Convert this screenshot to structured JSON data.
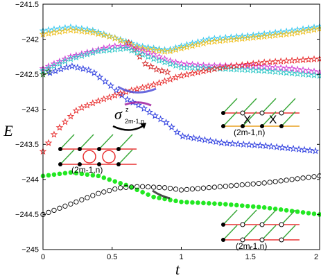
{
  "chart_data": {
    "type": "scatter",
    "xlabel": "t",
    "ylabel": "E",
    "xlim": [
      0,
      2
    ],
    "ylim": [
      -245,
      -241.5
    ],
    "grid": false,
    "x_ticks": [
      0,
      0.5,
      1,
      1.5,
      2
    ],
    "x_tick_labels": [
      "0",
      "0.5",
      "1",
      "1.5",
      "2"
    ],
    "y_ticks": [
      -241.5,
      -242,
      -242.5,
      -243,
      -243.5,
      -244,
      -244.5,
      -245
    ],
    "y_tick_labels": [
      "−241.5",
      "−242",
      "−242.5",
      "−243",
      "−243.5",
      "−244",
      "−244.5",
      "−245"
    ],
    "series": [
      {
        "marker": "star",
        "color": "#39c8f0",
        "points": [
          [
            0,
            -241.88
          ],
          [
            0.2,
            -241.83
          ],
          [
            0.35,
            -241.87
          ],
          [
            0.55,
            -242.0
          ],
          [
            0.7,
            -242.1
          ],
          [
            0.9,
            -242.16
          ],
          [
            1.0,
            -242.1
          ],
          [
            1.2,
            -242.0
          ],
          [
            1.5,
            -241.95
          ],
          [
            1.8,
            -241.88
          ],
          [
            2.0,
            -241.82
          ]
        ]
      },
      {
        "marker": "star",
        "color": "#f0c020",
        "points": [
          [
            0,
            -241.93
          ],
          [
            0.2,
            -241.87
          ],
          [
            0.35,
            -241.9
          ],
          [
            0.5,
            -241.97
          ],
          [
            0.6,
            -242.05
          ],
          [
            0.7,
            -242.13
          ],
          [
            0.9,
            -242.18
          ],
          [
            1.0,
            -242.13
          ],
          [
            1.2,
            -242.04
          ],
          [
            1.5,
            -241.98
          ],
          [
            1.8,
            -241.92
          ],
          [
            2.0,
            -241.85
          ]
        ]
      },
      {
        "marker": "star",
        "color": "#d42c2c",
        "points": [
          [
            0.62,
            -242.05
          ],
          [
            0.68,
            -242.2
          ],
          [
            0.74,
            -242.35
          ],
          [
            0.82,
            -242.43
          ],
          [
            0.9,
            -242.47
          ]
        ]
      },
      {
        "marker": "star",
        "color": "#d43cd4",
        "points": [
          [
            0,
            -242.42
          ],
          [
            0.2,
            -242.25
          ],
          [
            0.4,
            -242.15
          ],
          [
            0.5,
            -242.1
          ],
          [
            0.6,
            -242.1
          ],
          [
            0.7,
            -242.15
          ],
          [
            0.8,
            -242.22
          ],
          [
            0.9,
            -242.3
          ],
          [
            1.0,
            -242.35
          ],
          [
            1.2,
            -242.38
          ],
          [
            1.5,
            -242.38
          ],
          [
            1.8,
            -242.42
          ],
          [
            2.0,
            -242.47
          ]
        ]
      },
      {
        "marker": "star",
        "color": "#30c8c8",
        "points": [
          [
            0,
            -242.45
          ],
          [
            0.2,
            -242.28
          ],
          [
            0.4,
            -242.17
          ],
          [
            0.6,
            -242.13
          ],
          [
            0.8,
            -242.28
          ],
          [
            1.0,
            -242.4
          ],
          [
            1.3,
            -242.42
          ],
          [
            1.6,
            -242.45
          ],
          [
            2.0,
            -242.52
          ]
        ]
      },
      {
        "marker": "star",
        "color": "#2a7a2a",
        "points": [
          [
            0,
            -242.5
          ],
          [
            0.05,
            -242.45
          ]
        ]
      },
      {
        "marker": "star",
        "color": "#3040e0",
        "points": [
          [
            0.05,
            -242.48
          ],
          [
            0.2,
            -242.38
          ],
          [
            0.35,
            -242.45
          ],
          [
            0.5,
            -242.68
          ],
          [
            0.6,
            -242.85
          ],
          [
            0.7,
            -242.95
          ],
          [
            0.8,
            -243.08
          ],
          [
            0.9,
            -243.2
          ],
          [
            1.0,
            -243.38
          ],
          [
            1.3,
            -243.48
          ],
          [
            1.6,
            -243.52
          ],
          [
            2.0,
            -243.6
          ]
        ]
      },
      {
        "marker": "star",
        "color": "#e83030",
        "points": [
          [
            0,
            -243.6
          ],
          [
            0.1,
            -243.3
          ],
          [
            0.25,
            -243.0
          ],
          [
            0.4,
            -242.88
          ],
          [
            0.6,
            -242.75
          ],
          [
            0.8,
            -242.65
          ],
          [
            1.0,
            -242.52
          ],
          [
            1.3,
            -242.4
          ],
          [
            1.6,
            -242.33
          ],
          [
            2.0,
            -242.28
          ]
        ]
      },
      {
        "marker": "filled-circle",
        "color": "#22e822",
        "points": [
          [
            0,
            -243.95
          ],
          [
            0.2,
            -243.9
          ],
          [
            0.4,
            -243.95
          ],
          [
            0.6,
            -244.08
          ],
          [
            0.8,
            -244.25
          ],
          [
            1.0,
            -244.32
          ],
          [
            1.3,
            -244.35
          ],
          [
            1.6,
            -244.4
          ],
          [
            2.0,
            -244.5
          ]
        ]
      },
      {
        "marker": "open-circle",
        "color": "#000000",
        "points": [
          [
            0,
            -244.5
          ],
          [
            0.2,
            -244.35
          ],
          [
            0.4,
            -244.2
          ],
          [
            0.55,
            -244.12
          ],
          [
            0.7,
            -244.1
          ],
          [
            0.9,
            -244.12
          ],
          [
            1.0,
            -244.15
          ],
          [
            1.3,
            -244.1
          ],
          [
            1.6,
            -244.05
          ],
          [
            2.0,
            -243.95
          ]
        ]
      }
    ],
    "annotations": [
      {
        "text": "(2m-1,n)"
      },
      {
        "text": "(2m-1,n)"
      },
      {
        "text": "(2m-1,n)"
      },
      {
        "text": "X"
      },
      {
        "text": "X"
      }
    ],
    "operator_label": {
      "symbol": "σ",
      "superscript": "z",
      "subscript": "2m-1,n"
    }
  }
}
